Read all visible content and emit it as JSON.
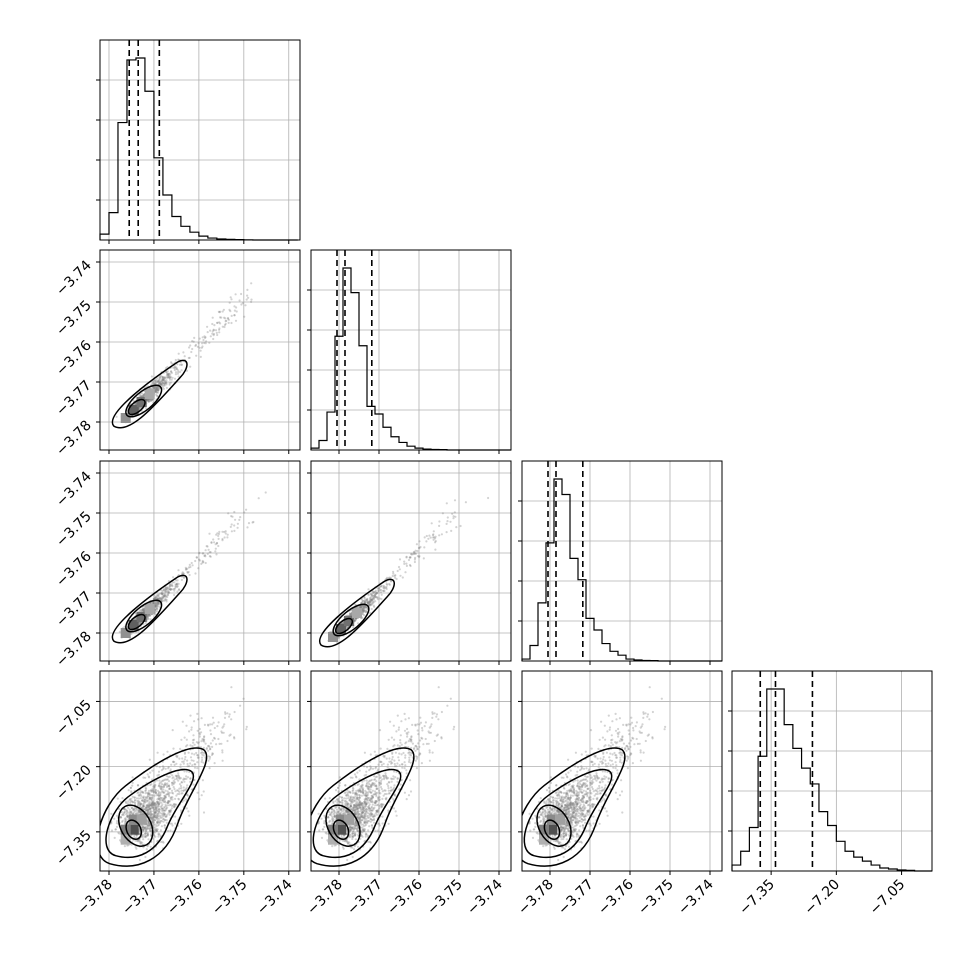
{
  "chart_data": {
    "type": "corner",
    "parameters": [
      {
        "index": 0,
        "range": [
          -3.782,
          -3.7375
        ],
        "ticks": [
          -3.78,
          -3.77,
          -3.76,
          -3.75,
          -3.74
        ],
        "tick_labels": [
          "−3.78",
          "−3.77",
          "−3.76",
          "−3.75",
          "−3.74"
        ],
        "quantiles": [
          -3.7755,
          -3.7735,
          -3.7688
        ]
      },
      {
        "index": 1,
        "range": [
          -3.787,
          -3.737
        ],
        "ticks": [
          -3.78,
          -3.77,
          -3.76,
          -3.75,
          -3.74
        ],
        "tick_labels": [
          "−3.78",
          "−3.77",
          "−3.76",
          "−3.75",
          "−3.74"
        ],
        "quantiles": [
          -3.7805,
          -3.7785,
          -3.7718
        ]
      },
      {
        "index": 2,
        "range": [
          -3.787,
          -3.737
        ],
        "ticks": [
          -3.78,
          -3.77,
          -3.76,
          -3.75,
          -3.74
        ],
        "tick_labels": [
          "−3.78",
          "−3.77",
          "−3.76",
          "−3.75",
          "−3.74"
        ],
        "quantiles": [
          -3.7805,
          -3.7785,
          -3.7718
        ]
      },
      {
        "index": 3,
        "range": [
          -7.44,
          -6.98
        ],
        "ticks": [
          -7.35,
          -7.2,
          -7.05
        ],
        "tick_labels": [
          "−7.35",
          "−7.20",
          "−7.05"
        ],
        "quantiles": [
          -7.375,
          -7.34,
          -7.255
        ]
      }
    ],
    "histograms": [
      {
        "param": 0,
        "bin_edges": [
          -3.782,
          -3.78,
          -3.778,
          -3.776,
          -3.774,
          -3.772,
          -3.77,
          -3.768,
          -3.766,
          -3.764,
          -3.762,
          -3.76,
          -3.758,
          -3.756,
          -3.754,
          -3.752,
          -3.75,
          -3.748,
          -3.746,
          -3.744,
          -3.742,
          -3.74,
          -3.738
        ],
        "counts": [
          3,
          14,
          60,
          92,
          93,
          76,
          42,
          23,
          12,
          7,
          4,
          2,
          1,
          0.5,
          0.3,
          0.2,
          0.1,
          0,
          0,
          0,
          0,
          0
        ]
      },
      {
        "param": 1,
        "bin_edges": [
          -3.787,
          -3.785,
          -3.783,
          -3.781,
          -3.779,
          -3.777,
          -3.775,
          -3.773,
          -3.771,
          -3.769,
          -3.767,
          -3.765,
          -3.763,
          -3.761,
          -3.759,
          -3.757,
          -3.755,
          -3.753,
          -3.751,
          -3.749,
          -3.747,
          -3.745,
          -3.743,
          -3.741,
          -3.739,
          -3.737
        ],
        "counts": [
          1,
          5,
          20,
          60,
          96,
          83,
          55,
          23,
          19,
          12,
          7,
          4,
          2,
          1,
          0.5,
          0.3,
          0.2,
          0,
          0,
          0,
          0,
          0,
          0,
          0,
          0
        ]
      },
      {
        "param": 2,
        "bin_edges": [
          -3.787,
          -3.785,
          -3.783,
          -3.781,
          -3.779,
          -3.777,
          -3.775,
          -3.773,
          -3.771,
          -3.769,
          -3.767,
          -3.765,
          -3.763,
          -3.761,
          -3.759,
          -3.757,
          -3.755,
          -3.753,
          -3.751,
          -3.749,
          -3.747,
          -3.745,
          -3.743,
          -3.741,
          -3.739,
          -3.737
        ],
        "counts": [
          1,
          8,
          30,
          61,
          94,
          86,
          53,
          42,
          22,
          16,
          9,
          5,
          3,
          1,
          0.5,
          0.3,
          0.2,
          0,
          0,
          0,
          0,
          0,
          0,
          0,
          0
        ]
      },
      {
        "param": 3,
        "bin_edges": [
          -7.44,
          -7.42,
          -7.4,
          -7.38,
          -7.36,
          -7.34,
          -7.32,
          -7.3,
          -7.28,
          -7.26,
          -7.24,
          -7.22,
          -7.2,
          -7.18,
          -7.16,
          -7.14,
          -7.12,
          -7.1,
          -7.08,
          -7.06,
          -7.04,
          -7.02,
          -7.0,
          -6.98
        ],
        "counts": [
          3,
          10,
          22,
          58,
          92,
          92,
          74,
          62,
          52,
          44,
          30,
          23,
          15,
          10,
          7,
          5,
          3,
          1.5,
          1,
          0.5,
          0.3,
          0,
          0
        ]
      }
    ],
    "pairs": [
      {
        "x_param": 0,
        "y_param": 1,
        "peak": [
          -3.7745,
          -3.777
        ],
        "corr": 0.99
      },
      {
        "x_param": 0,
        "y_param": 2,
        "peak": [
          -3.7745,
          -3.778
        ],
        "corr": 0.99
      },
      {
        "x_param": 1,
        "y_param": 2,
        "peak": [
          -3.7795,
          -3.779
        ],
        "corr": 0.99
      },
      {
        "x_param": 0,
        "y_param": 3,
        "peak": [
          -3.7745,
          -7.345
        ],
        "corr": 0.6
      },
      {
        "x_param": 1,
        "y_param": 3,
        "peak": [
          -3.7795,
          -7.345
        ],
        "corr": 0.6
      },
      {
        "x_param": 2,
        "y_param": 3,
        "peak": [
          -3.7795,
          -7.345
        ],
        "corr": 0.6
      }
    ],
    "grid": true,
    "colors": {
      "line": "#000000",
      "grid": "#b0b0b0",
      "points": "#808080"
    }
  }
}
